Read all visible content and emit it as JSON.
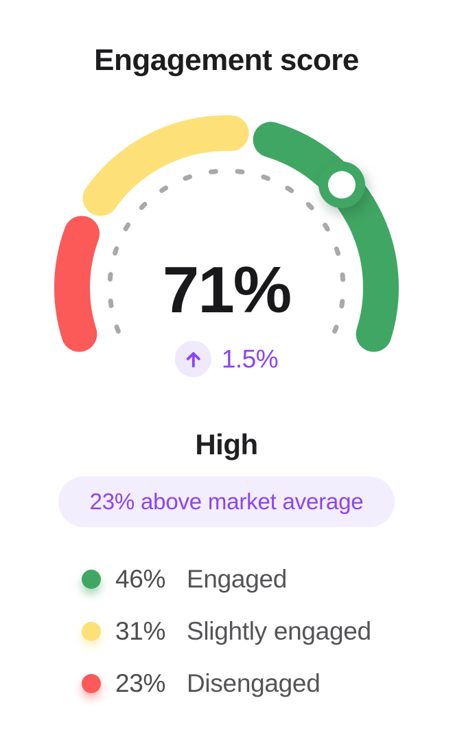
{
  "card": {
    "title": "Engagement score"
  },
  "chart_data": {
    "type": "gauge",
    "value_pct": 71,
    "value_label": "71%",
    "delta_label": "1.5%",
    "delta_direction": "up",
    "level_label": "High",
    "comparison_label": "23% above market average",
    "gauge_layout": {
      "start_angle_deg": 205,
      "total_sweep_deg": 230,
      "open_side": "bottom",
      "dotted_inner_track": true,
      "knob_on_value": true,
      "legend_position": "bottom-left"
    },
    "segments": [
      {
        "name": "Disengaged",
        "pct": 23,
        "color": "#fb5a58"
      },
      {
        "name": "Slightly engaged",
        "pct": 31,
        "color": "#fde178"
      },
      {
        "name": "Engaged",
        "pct": 46,
        "color": "#3fa763"
      }
    ],
    "legend": [
      {
        "pct_label": "46%",
        "label": "Engaged",
        "color": "#3fa763"
      },
      {
        "pct_label": "31%",
        "label": "Slightly engaged",
        "color": "#fde178"
      },
      {
        "pct_label": "23%",
        "label": "Disengaged",
        "color": "#fb5a58"
      }
    ]
  },
  "colors": {
    "accent_purple": "#8b44f2",
    "chip_bg": "#efe9fc",
    "badge_bg": "#f3eefd",
    "dotted_track": "#a9a9ab",
    "title_text": "#1d1d1f",
    "value_text": "#19191b",
    "legend_text": "#545457"
  },
  "icons": {
    "arrow_up": "arrow-up-icon"
  }
}
